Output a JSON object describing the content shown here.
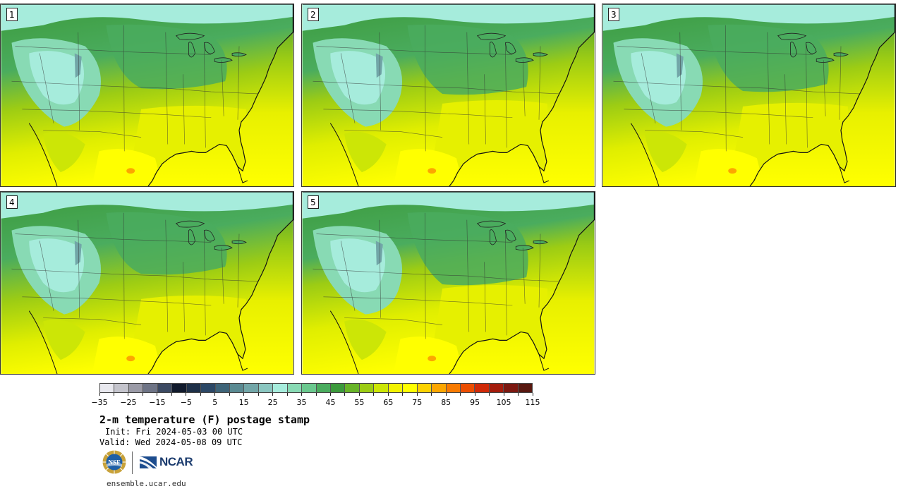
{
  "panels": [
    {
      "label": "1",
      "variant": 1
    },
    {
      "label": "2",
      "variant": 2
    },
    {
      "label": "3",
      "variant": 3
    },
    {
      "label": "4",
      "variant": 4
    },
    {
      "label": "5",
      "variant": 5
    }
  ],
  "colorbar": {
    "colors": [
      "#e8e8ee",
      "#c4c4cc",
      "#9a9aa6",
      "#6e7486",
      "#3c4a62",
      "#111a2c",
      "#1e3048",
      "#2c4866",
      "#3e6478",
      "#5a8a92",
      "#72a6a8",
      "#8ac6c0",
      "#a6ecdc",
      "#88dab4",
      "#6ac88e",
      "#4aac5e",
      "#3c9a3c",
      "#68b428",
      "#9ccc14",
      "#cce606",
      "#f2f200",
      "#ffff00",
      "#fcd200",
      "#fca600",
      "#f87a00",
      "#ec4e00",
      "#d02a08",
      "#a41c0c",
      "#7c1810",
      "#581810"
    ],
    "tick_labels": [
      "−35",
      "−25",
      "−15",
      "−5",
      "5",
      "15",
      "25",
      "35",
      "45",
      "55",
      "65",
      "75",
      "85",
      "95",
      "105",
      "115"
    ],
    "min": -35,
    "max": 120,
    "step": 5
  },
  "title": "2-m temperature (F) postage stamp",
  "init": "Init: Fri 2024-05-03 00 UTC",
  "valid": "Valid: Wed 2024-05-08 09 UTC",
  "logos": {
    "nsf_text": "NSF",
    "ncar_text": "NCAR"
  },
  "site": "ensemble.ucar.edu"
}
